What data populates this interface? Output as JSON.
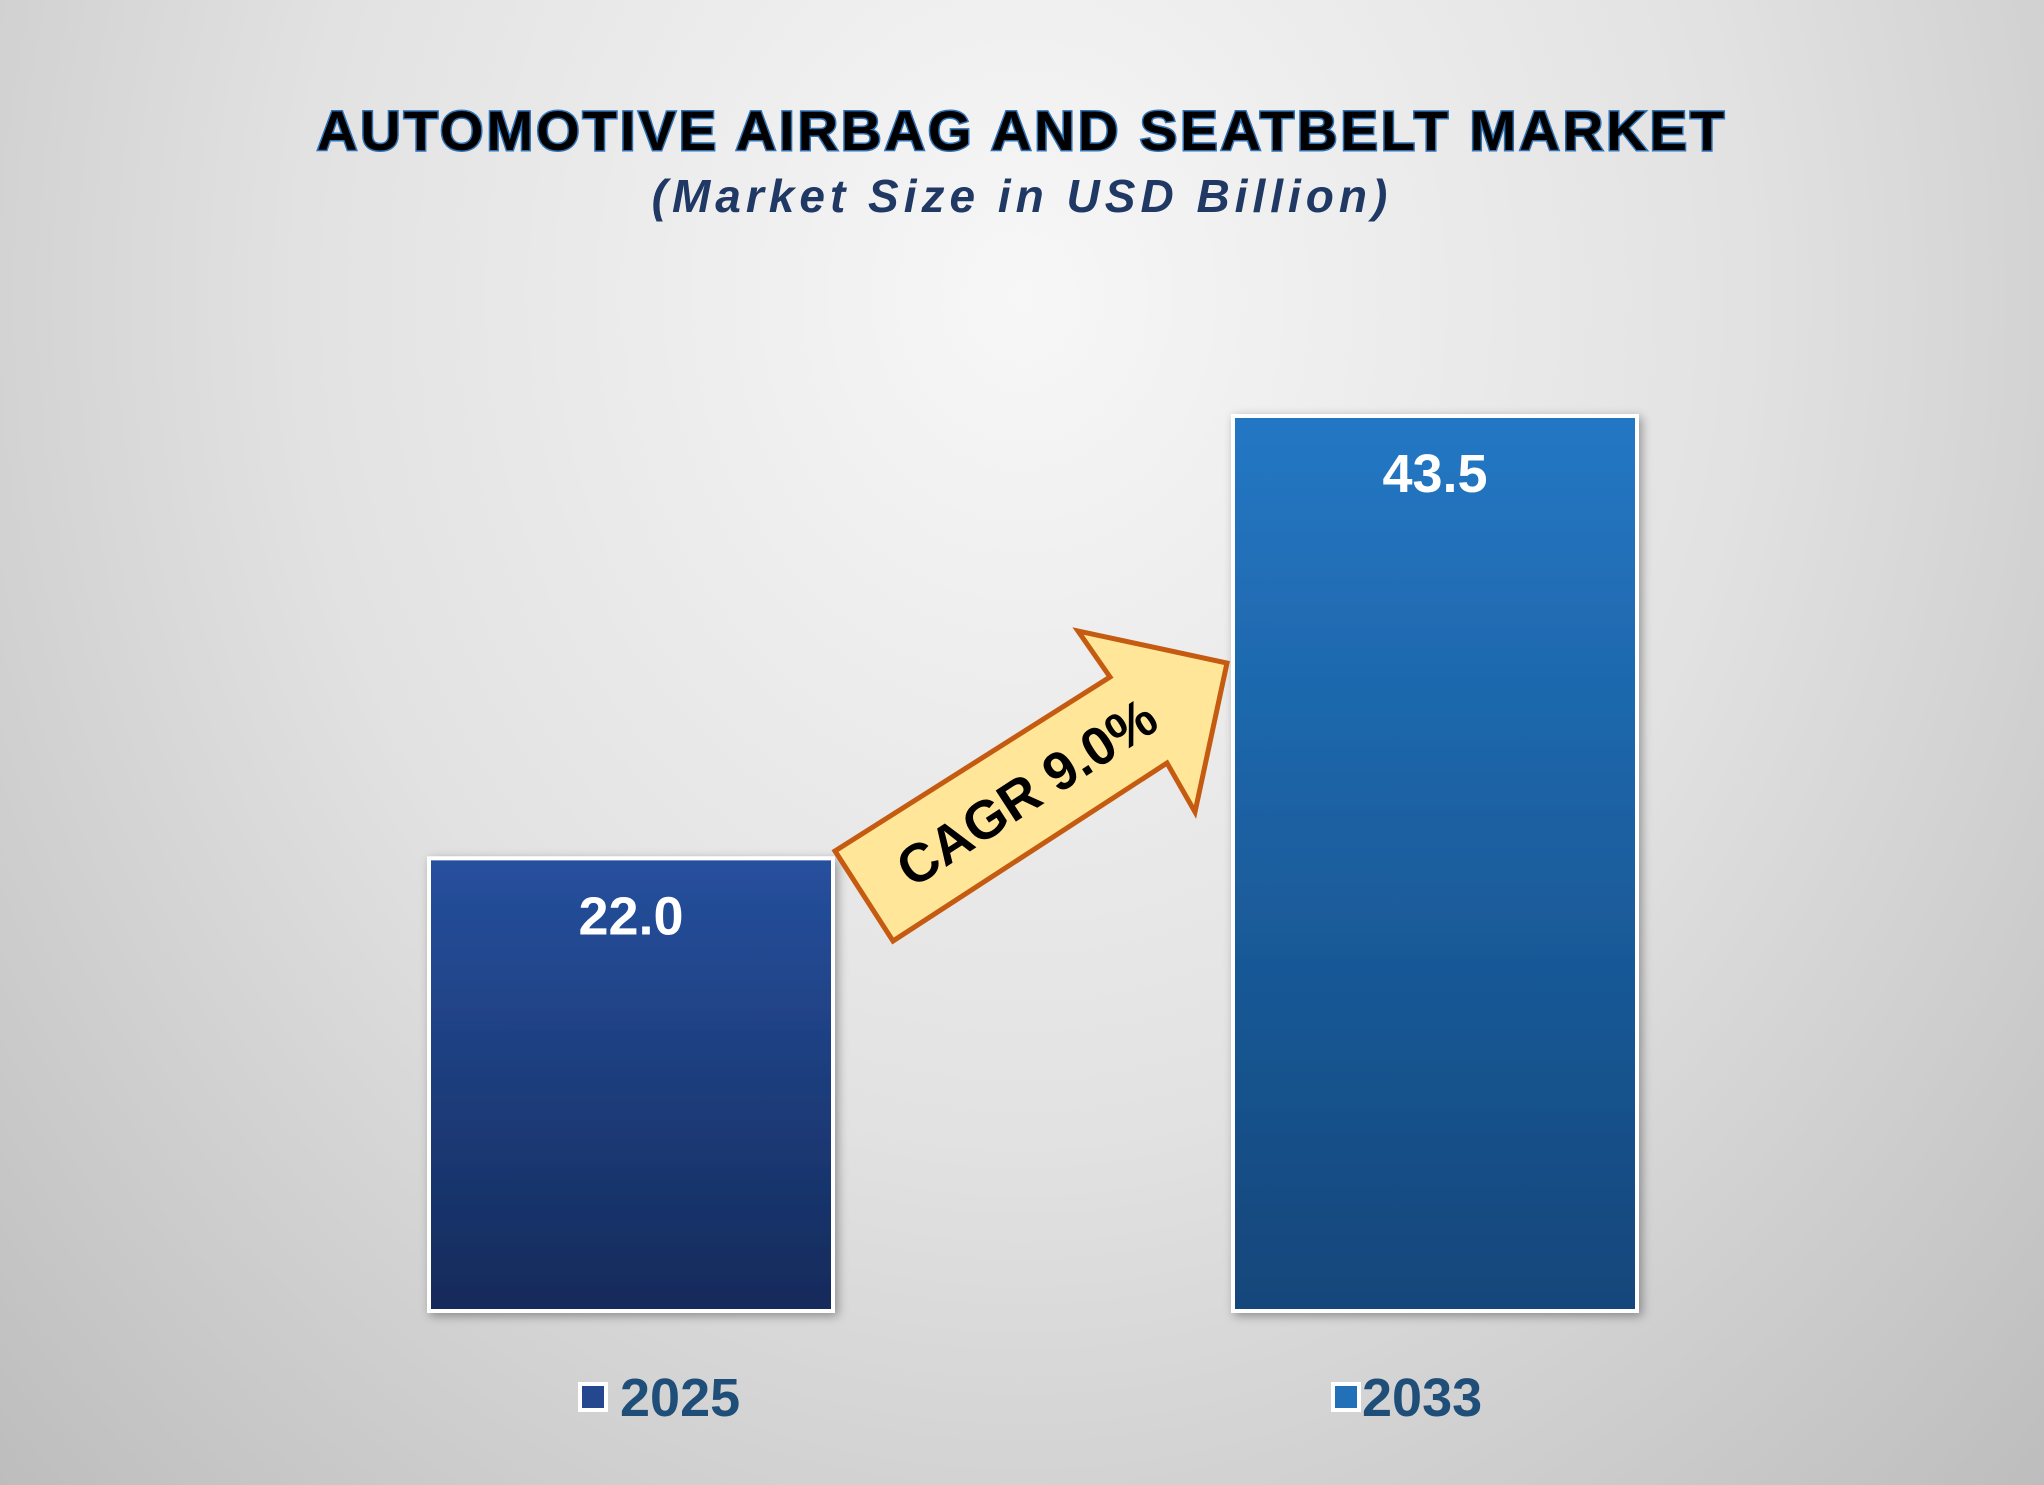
{
  "chart_data": {
    "type": "bar",
    "title": "AUTOMOTIVE AIRBAG AND SEATBELT MARKET",
    "subtitle": "(Market Size in USD Billion)",
    "categories": [
      "2025",
      "2033"
    ],
    "values": [
      22.0,
      43.5
    ],
    "value_labels": [
      "22.0",
      "43.5"
    ],
    "colors": [
      "#24478f",
      "#2170b8"
    ],
    "annotation": "CAGR 9.0%",
    "grid": false,
    "legend_placement": "bottom",
    "ylim": [
      0,
      43.5
    ]
  }
}
